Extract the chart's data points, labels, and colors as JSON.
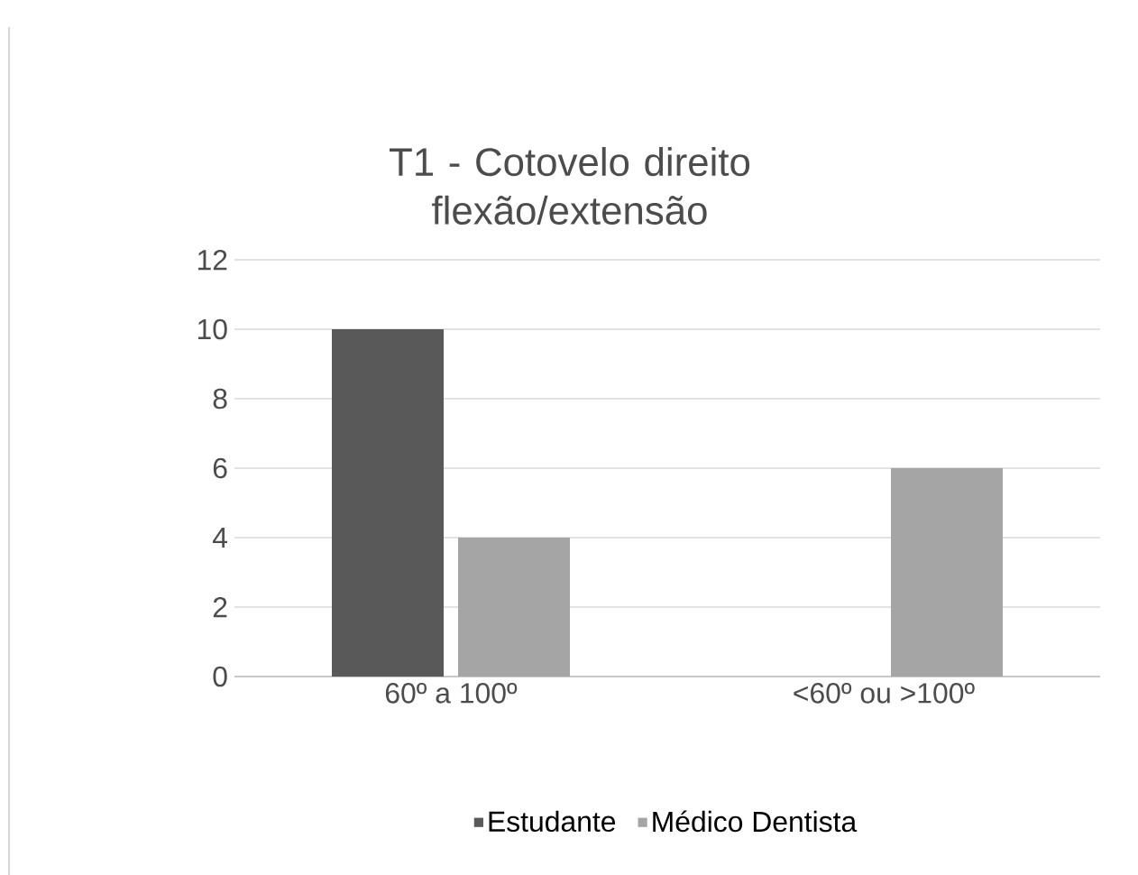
{
  "chart_data": {
    "type": "bar",
    "title": "T1 - Cotovelo direito flexão/extensão",
    "categories": [
      "60º a 100º",
      "<60º ou >100º"
    ],
    "series": [
      {
        "name": "Estudante",
        "color": "#595959",
        "values": [
          10,
          0
        ]
      },
      {
        "name": "Médico Dentista",
        "color": "#a5a5a5",
        "values": [
          4,
          6
        ]
      }
    ],
    "ylim": [
      0,
      12
    ],
    "yticks": [
      0,
      2,
      4,
      6,
      8,
      10,
      12
    ],
    "grid": "y",
    "legend": "bottom"
  }
}
